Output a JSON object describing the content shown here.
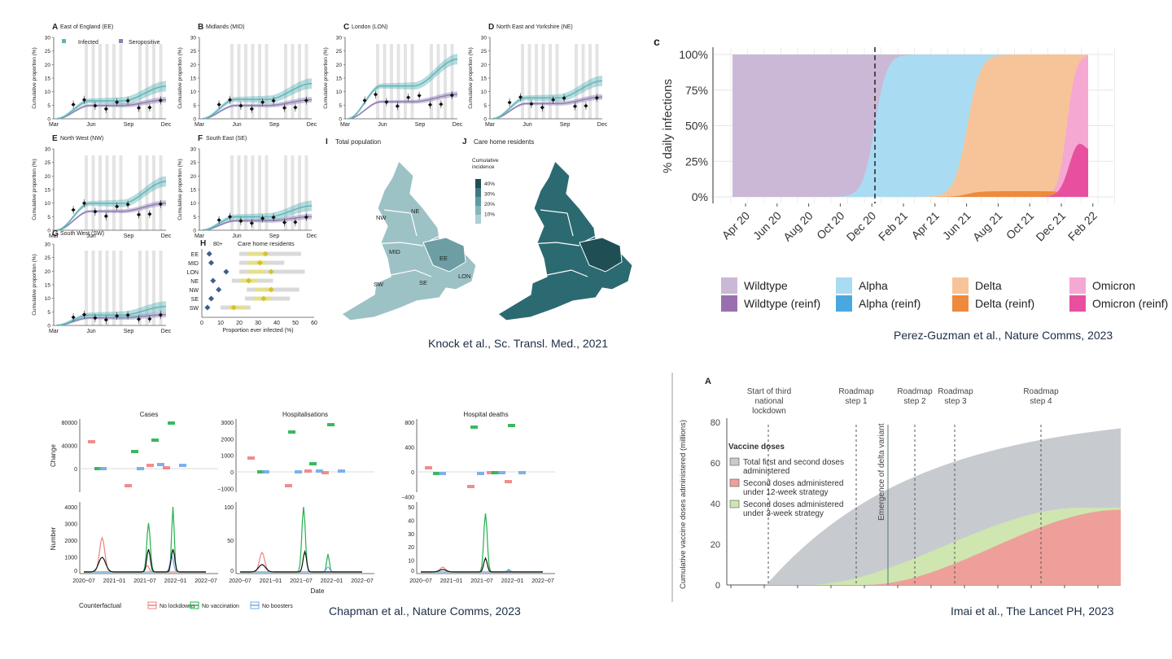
{
  "captions": {
    "knock": "Knock et al., Sc. Transl. Med., 2021",
    "perez": "Perez-Guzman et al., Nature Comms, 2023",
    "chapman": "Chapman et al., Nature Comms, 2023",
    "imai": "Imai et al., The Lancet PH, 2023"
  },
  "colors": {
    "infected": "#5fb3b8",
    "seropositive": "#8e7cb5",
    "wildtype": "#cbb8d6",
    "wildtype_reinf": "#9a6fb0",
    "alpha": "#a9dcf2",
    "alpha_reinf": "#4aa8e0",
    "delta": "#f7c49a",
    "delta_reinf": "#ef8a3c",
    "omicron": "#f5a8d2",
    "omicron_reinf": "#e8509f",
    "no_lockdowns": "#f08080",
    "no_vaccination": "#22b14c",
    "no_boosters": "#6fa8e8",
    "imai_total": "#c7cbd0",
    "imai_12wk": "#ef9f9a",
    "imai_3wk": "#cfe6b0"
  },
  "chart_data": [
    {
      "type": "line",
      "panel": "Knock et al. A-G",
      "ylabel": "Cumulative proportion (%)",
      "x_ticks": [
        "Mar",
        "Jun",
        "Sep",
        "Dec"
      ],
      "y_ticks": [
        "0",
        "5",
        "10",
        "15",
        "20",
        "25",
        "30"
      ],
      "ylim": [
        0,
        30
      ],
      "legend": [
        "Infected",
        "Seropositive"
      ],
      "panels": [
        {
          "label": "A",
          "title": "East of England (EE)",
          "infected_end": 12,
          "sero_end": 7
        },
        {
          "label": "B",
          "title": "Midlands (MID)",
          "infected_end": 13,
          "sero_end": 7
        },
        {
          "label": "C",
          "title": "London (LON)",
          "infected_end": 22,
          "sero_end": 9
        },
        {
          "label": "D",
          "title": "North East and Yorkshire (NE)",
          "infected_end": 14,
          "sero_end": 8
        },
        {
          "label": "E",
          "title": "North West (NW)",
          "infected_end": 18,
          "sero_end": 10
        },
        {
          "label": "F",
          "title": "South East (SE)",
          "infected_end": 9,
          "sero_end": 5
        },
        {
          "label": "G",
          "title": "South West (SW)",
          "infected_end": 7,
          "sero_end": 4
        }
      ]
    },
    {
      "type": "scatter",
      "panel": "Knock et al. H",
      "label": "H",
      "title_a": "80+",
      "title_b": "Care home residents",
      "xlabel": "Proportion ever infected (%)",
      "x_ticks": [
        0,
        10,
        20,
        30,
        40,
        50,
        60
      ],
      "xlim": [
        0,
        60
      ],
      "categories": [
        "EE",
        "MID",
        "LON",
        "NE",
        "NW",
        "SE",
        "SW"
      ],
      "over80": [
        4,
        5,
        13,
        6,
        9,
        5,
        3
      ],
      "care_home": [
        34,
        31,
        37,
        25,
        37,
        33,
        17
      ],
      "care_home_low": [
        20,
        20,
        20,
        16,
        24,
        23,
        10
      ],
      "care_home_high": [
        53,
        44,
        55,
        38,
        52,
        47,
        26
      ]
    },
    {
      "type": "heatmap",
      "panel": "Knock et al. I/J",
      "label_i": "I",
      "title_i": "Total population",
      "label_j": "J",
      "title_j": "Care home residents",
      "legend_title": [
        "Cumulative",
        "incidence"
      ],
      "legend_ticks": [
        "40%",
        "30%",
        "20%",
        "10%"
      ],
      "regions": [
        "NE",
        "NW",
        "MID",
        "EE",
        "SW",
        "SE",
        "LON"
      ]
    },
    {
      "type": "area",
      "panel": "Perez-Guzman et al. c",
      "label": "c",
      "ylabel": "% daily infections",
      "y_ticks": [
        "0%",
        "25%",
        "50%",
        "75%",
        "100%"
      ],
      "x_ticks": [
        "Apr 20",
        "Jun 20",
        "Aug 20",
        "Oct 20",
        "Dec 20",
        "Feb 21",
        "Apr 21",
        "Jun 21",
        "Aug 21",
        "Oct 21",
        "Dec 21",
        "Feb 22"
      ],
      "legend": [
        "Wildtype",
        "Wildtype (reinf)",
        "Alpha",
        "Alpha (reinf)",
        "Delta",
        "Delta (reinf)",
        "Omicron",
        "Omicron (reinf)"
      ],
      "dashed_line_at": "Dec 20"
    },
    {
      "type": "bar",
      "panel": "Chapman et al.",
      "facets": [
        {
          "title": "Cases",
          "change_ticks": [
            "80000",
            "40000",
            "0"
          ],
          "number_ticks": [
            "4000",
            "3000",
            "2000",
            "1000",
            "0"
          ]
        },
        {
          "title": "Hospitalisations",
          "change_ticks": [
            "3000",
            "2000",
            "1000",
            "0",
            "−1000"
          ],
          "number_ticks": [
            "100",
            "50",
            "0"
          ]
        },
        {
          "title": "Hospital deaths",
          "change_ticks": [
            "800",
            "400",
            "0",
            "−400"
          ],
          "number_ticks": [
            "50",
            "40",
            "30",
            "20",
            "10",
            "0"
          ]
        }
      ],
      "ylabel_top": "Change",
      "ylabel_bottom": "Number",
      "xlabel": "Date",
      "x_ticks": [
        "2020−07",
        "2021−01",
        "2021−07",
        "2022−01",
        "2022−07"
      ],
      "legend_title": "Counterfactual",
      "legend": [
        "No lockdowns",
        "No vaccination",
        "No boosters"
      ]
    },
    {
      "type": "area",
      "panel": "Imai et al. A",
      "label": "A",
      "ylabel": "Cumulative vaccine doses administered (millions)",
      "y_ticks": [
        "0",
        "20",
        "40",
        "60",
        "80"
      ],
      "ylim": [
        0,
        80
      ],
      "legend_title": "Vaccine doses",
      "legend": [
        "Total first and second doses administered",
        "Second doses administered under 12-week strategy",
        "Second doses administered under 3-week strategy"
      ],
      "annotations": [
        "Start of third national lockdown",
        "Roadmap step 1",
        "Roadmap step 2",
        "Roadmap step 3",
        "Roadmap step 4",
        "Emergence of delta variant"
      ],
      "total_end": 77,
      "twelve_week_end": 37,
      "three_week_end": 38
    }
  ]
}
